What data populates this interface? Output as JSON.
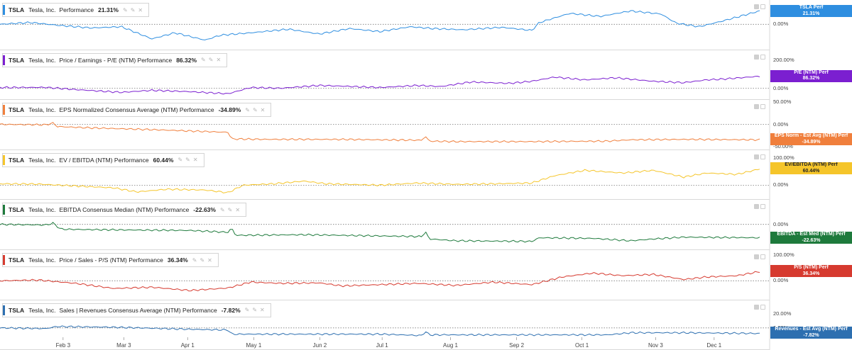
{
  "chart_data": {
    "type": "line",
    "x_ticks": [
      "Feb 3",
      "Mar 3",
      "Apr 1",
      "May 1",
      "Jun 2",
      "Jul 1",
      "Aug 1",
      "Sep 2",
      "Oct 1",
      "Nov 3",
      "Dec 1"
    ],
    "x_tick_pos": [
      0.083,
      0.163,
      0.247,
      0.334,
      0.421,
      0.503,
      0.593,
      0.68,
      0.766,
      0.863,
      0.94
    ],
    "panels": [
      {
        "ticker": "TSLA",
        "company": "Tesla, Inc.",
        "metric": "Performance",
        "value": "21.31%",
        "color": "#2e8ee0",
        "yticks": [
          {
            "label": "0.00%",
            "v": 0
          }
        ],
        "ylim": [
          -40,
          40
        ],
        "tag": [
          "TSLA Perf",
          "21.31%"
        ],
        "knots": [
          [
            0,
            0
          ],
          [
            0.04,
            3
          ],
          [
            0.08,
            -2
          ],
          [
            0.12,
            -6
          ],
          [
            0.16,
            -4
          ],
          [
            0.2,
            -24
          ],
          [
            0.23,
            -14
          ],
          [
            0.27,
            -26
          ],
          [
            0.29,
            -18
          ],
          [
            0.33,
            -14
          ],
          [
            0.38,
            -8
          ],
          [
            0.42,
            -16
          ],
          [
            0.46,
            -7
          ],
          [
            0.5,
            -12
          ],
          [
            0.54,
            -4
          ],
          [
            0.57,
            -7
          ],
          [
            0.61,
            -9
          ],
          [
            0.66,
            -5
          ],
          [
            0.7,
            -10
          ],
          [
            0.71,
            3
          ],
          [
            0.75,
            18
          ],
          [
            0.79,
            13
          ],
          [
            0.83,
            22
          ],
          [
            0.87,
            17
          ],
          [
            0.89,
            2
          ],
          [
            0.92,
            -4
          ],
          [
            0.95,
            5
          ],
          [
            1.0,
            22
          ]
        ]
      },
      {
        "ticker": "TSLA",
        "company": "Tesla, Inc.",
        "metric": "Price / Earnings - P/E (NTM) Performance",
        "value": "86.32%",
        "color": "#7b1fd0",
        "yticks": [
          {
            "label": "200.00%",
            "v": 200
          },
          {
            "label": "0.00%",
            "v": 0
          }
        ],
        "ylim": [
          -75,
          275
        ],
        "tag": [
          "P/E (NTM) Perf",
          "86.32%"
        ],
        "knots": [
          [
            0,
            5
          ],
          [
            0.06,
            6
          ],
          [
            0.1,
            -10
          ],
          [
            0.16,
            -30
          ],
          [
            0.2,
            -15
          ],
          [
            0.25,
            -25
          ],
          [
            0.3,
            -40
          ],
          [
            0.33,
            5
          ],
          [
            0.37,
            0
          ],
          [
            0.42,
            20
          ],
          [
            0.45,
            15
          ],
          [
            0.5,
            5
          ],
          [
            0.55,
            20
          ],
          [
            0.58,
            12
          ],
          [
            0.62,
            45
          ],
          [
            0.67,
            35
          ],
          [
            0.7,
            50
          ],
          [
            0.73,
            80
          ],
          [
            0.77,
            60
          ],
          [
            0.81,
            75
          ],
          [
            0.86,
            50
          ],
          [
            0.9,
            40
          ],
          [
            0.93,
            60
          ],
          [
            0.95,
            65
          ],
          [
            1.0,
            86
          ]
        ]
      },
      {
        "ticker": "TSLA",
        "company": "Tesla, Inc.",
        "metric": "EPS Normalized Consensus Average (NTM) Performance",
        "value": "-34.89%",
        "color": "#f07f3c",
        "yticks": [
          {
            "label": "50.00%",
            "v": 50
          },
          {
            "label": "0.00%",
            "v": 0
          },
          {
            "label": "-50.00%",
            "v": -50
          }
        ],
        "ylim": [
          -55,
          55
        ],
        "tag": [
          "EPS Norm - Est Avg (NTM) Perf",
          "-34.89%"
        ],
        "knots": [
          [
            0,
            0
          ],
          [
            0.06,
            -1
          ],
          [
            0.07,
            3
          ],
          [
            0.075,
            -5
          ],
          [
            0.12,
            -8
          ],
          [
            0.2,
            -12
          ],
          [
            0.25,
            -15
          ],
          [
            0.3,
            -18
          ],
          [
            0.305,
            -33
          ],
          [
            0.35,
            -34
          ],
          [
            0.45,
            -34
          ],
          [
            0.5,
            -35
          ],
          [
            0.555,
            -36
          ],
          [
            0.56,
            -27
          ],
          [
            0.565,
            -38
          ],
          [
            0.6,
            -39
          ],
          [
            0.7,
            -39
          ],
          [
            0.8,
            -38
          ],
          [
            0.83,
            -35
          ],
          [
            0.9,
            -34
          ],
          [
            1.0,
            -35
          ]
        ]
      },
      {
        "ticker": "TSLA",
        "company": "Tesla, Inc.",
        "metric": "EV / EBITDA (NTM) Performance",
        "value": "60.44%",
        "color": "#f5c52a",
        "yticks": [
          {
            "label": "100.00%",
            "v": 100
          },
          {
            "label": "0.00%",
            "v": 0
          }
        ],
        "ylim": [
          -50,
          130
        ],
        "tag": [
          "EV/EBITDA (NTM) Perf",
          "60.44%"
        ],
        "knots": [
          [
            0,
            5
          ],
          [
            0.05,
            4
          ],
          [
            0.1,
            -3
          ],
          [
            0.15,
            -10
          ],
          [
            0.18,
            -25
          ],
          [
            0.22,
            -15
          ],
          [
            0.27,
            -18
          ],
          [
            0.3,
            -28
          ],
          [
            0.32,
            0
          ],
          [
            0.36,
            5
          ],
          [
            0.4,
            15
          ],
          [
            0.43,
            5
          ],
          [
            0.5,
            0
          ],
          [
            0.55,
            8
          ],
          [
            0.6,
            3
          ],
          [
            0.65,
            5
          ],
          [
            0.7,
            8
          ],
          [
            0.73,
            35
          ],
          [
            0.77,
            55
          ],
          [
            0.82,
            45
          ],
          [
            0.86,
            55
          ],
          [
            0.9,
            30
          ],
          [
            0.93,
            45
          ],
          [
            0.97,
            40
          ],
          [
            1.0,
            60
          ]
        ]
      },
      {
        "ticker": "TSLA",
        "company": "Tesla, Inc.",
        "metric": "EBITDA Consensus Median (NTM) Performance",
        "value": "-22.63%",
        "color": "#1e7a3c",
        "yticks": [
          {
            "label": "0.00%",
            "v": 0
          }
        ],
        "ylim": [
          -40,
          40
        ],
        "tag": [
          "EBITDA - Est Med (NTM) Perf",
          "-22.63%"
        ],
        "knots": [
          [
            0,
            0
          ],
          [
            0.06,
            -1
          ],
          [
            0.07,
            2
          ],
          [
            0.08,
            -8
          ],
          [
            0.15,
            -9
          ],
          [
            0.25,
            -10
          ],
          [
            0.3,
            -13
          ],
          [
            0.305,
            -6
          ],
          [
            0.31,
            -18
          ],
          [
            0.4,
            -17
          ],
          [
            0.5,
            -19
          ],
          [
            0.555,
            -20
          ],
          [
            0.56,
            -12
          ],
          [
            0.565,
            -24
          ],
          [
            0.6,
            -27
          ],
          [
            0.7,
            -28
          ],
          [
            0.71,
            -22
          ],
          [
            0.78,
            -23
          ],
          [
            0.83,
            -27
          ],
          [
            0.86,
            -24
          ],
          [
            0.9,
            -21
          ],
          [
            1.0,
            -22
          ]
        ]
      },
      {
        "ticker": "TSLA",
        "company": "Tesla, Inc.",
        "metric": "Price / Sales - P/S (NTM) Performance",
        "value": "36.34%",
        "color": "#d63a2f",
        "yticks": [
          {
            "label": "100.00%",
            "v": 100
          },
          {
            "label": "0.00%",
            "v": 0
          }
        ],
        "ylim": [
          -70,
          120
        ],
        "tag": [
          "P/S (NTM) Perf",
          "36.34%"
        ],
        "knots": [
          [
            0,
            0
          ],
          [
            0.05,
            3
          ],
          [
            0.1,
            -10
          ],
          [
            0.15,
            -30
          ],
          [
            0.2,
            -25
          ],
          [
            0.25,
            -38
          ],
          [
            0.3,
            -28
          ],
          [
            0.33,
            -5
          ],
          [
            0.37,
            -10
          ],
          [
            0.42,
            -8
          ],
          [
            0.45,
            -20
          ],
          [
            0.5,
            -15
          ],
          [
            0.55,
            -10
          ],
          [
            0.6,
            -18
          ],
          [
            0.65,
            -5
          ],
          [
            0.7,
            -15
          ],
          [
            0.74,
            15
          ],
          [
            0.78,
            30
          ],
          [
            0.82,
            20
          ],
          [
            0.86,
            25
          ],
          [
            0.9,
            5
          ],
          [
            0.93,
            15
          ],
          [
            0.97,
            20
          ],
          [
            1.0,
            36
          ]
        ]
      },
      {
        "ticker": "TSLA",
        "company": "Tesla, Inc.",
        "metric": "Sales | Revenues Consensus Average (NTM) Performance",
        "value": "-7.82%",
        "color": "#2d6fb0",
        "yticks": [
          {
            "label": "20.00%",
            "v": 20
          },
          {
            "label": "0.00%",
            "v": 0
          }
        ],
        "ylim": [
          -30,
          40
        ],
        "tag": [
          "Revenues - Est Avg (NTM) Perf",
          "-7.82%"
        ],
        "knots": [
          [
            0,
            0
          ],
          [
            0.06,
            -1
          ],
          [
            0.075,
            2
          ],
          [
            0.15,
            1
          ],
          [
            0.25,
            -2
          ],
          [
            0.3,
            -3
          ],
          [
            0.305,
            -9
          ],
          [
            0.4,
            -9
          ],
          [
            0.5,
            -9
          ],
          [
            0.555,
            -11
          ],
          [
            0.56,
            -5
          ],
          [
            0.565,
            -10
          ],
          [
            0.6,
            -10
          ],
          [
            0.7,
            -10
          ],
          [
            0.75,
            -10
          ],
          [
            0.8,
            -10
          ],
          [
            0.83,
            -7
          ],
          [
            0.9,
            -7
          ],
          [
            1.0,
            -8
          ]
        ]
      }
    ]
  }
}
